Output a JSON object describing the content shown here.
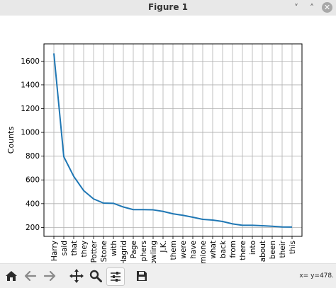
{
  "window": {
    "title": "Figure 1",
    "minimize_glyph": "˅",
    "maximize_glyph": "˄",
    "close_glyph": "✕"
  },
  "toolbar": {
    "tools": [
      "home-icon",
      "back-arrow-icon",
      "forward-arrow-icon",
      "pan-move-icon",
      "zoom-magnifier-icon",
      "configure-subplots-icon",
      "save-floppy-icon"
    ],
    "active_tool": "configure-subplots-icon",
    "coords": "x= y=478."
  },
  "chart_data": {
    "type": "line",
    "categories": [
      "Harry",
      "said",
      "that",
      "they",
      "Potter",
      "Stone",
      "with",
      "Hagrid",
      "Page",
      "phers",
      "owling",
      "J.K.",
      "them",
      "were",
      "have",
      "mione",
      "what",
      "back",
      "from",
      "there",
      "into",
      "about",
      "been",
      "their",
      "this"
    ],
    "series": [
      {
        "values": [
          1665,
          795,
          630,
          510,
          440,
          405,
          403,
          372,
          350,
          350,
          348,
          335,
          315,
          302,
          286,
          268,
          262,
          250,
          230,
          218,
          218,
          214,
          210,
          204,
          203
        ],
        "color": "#1f77b4"
      }
    ],
    "title": "",
    "xlabel": "",
    "ylabel": "Counts",
    "ylim": [
      125,
      1745
    ],
    "yticks": [
      200,
      400,
      600,
      800,
      1000,
      1200,
      1400,
      1600
    ],
    "grid": true
  }
}
